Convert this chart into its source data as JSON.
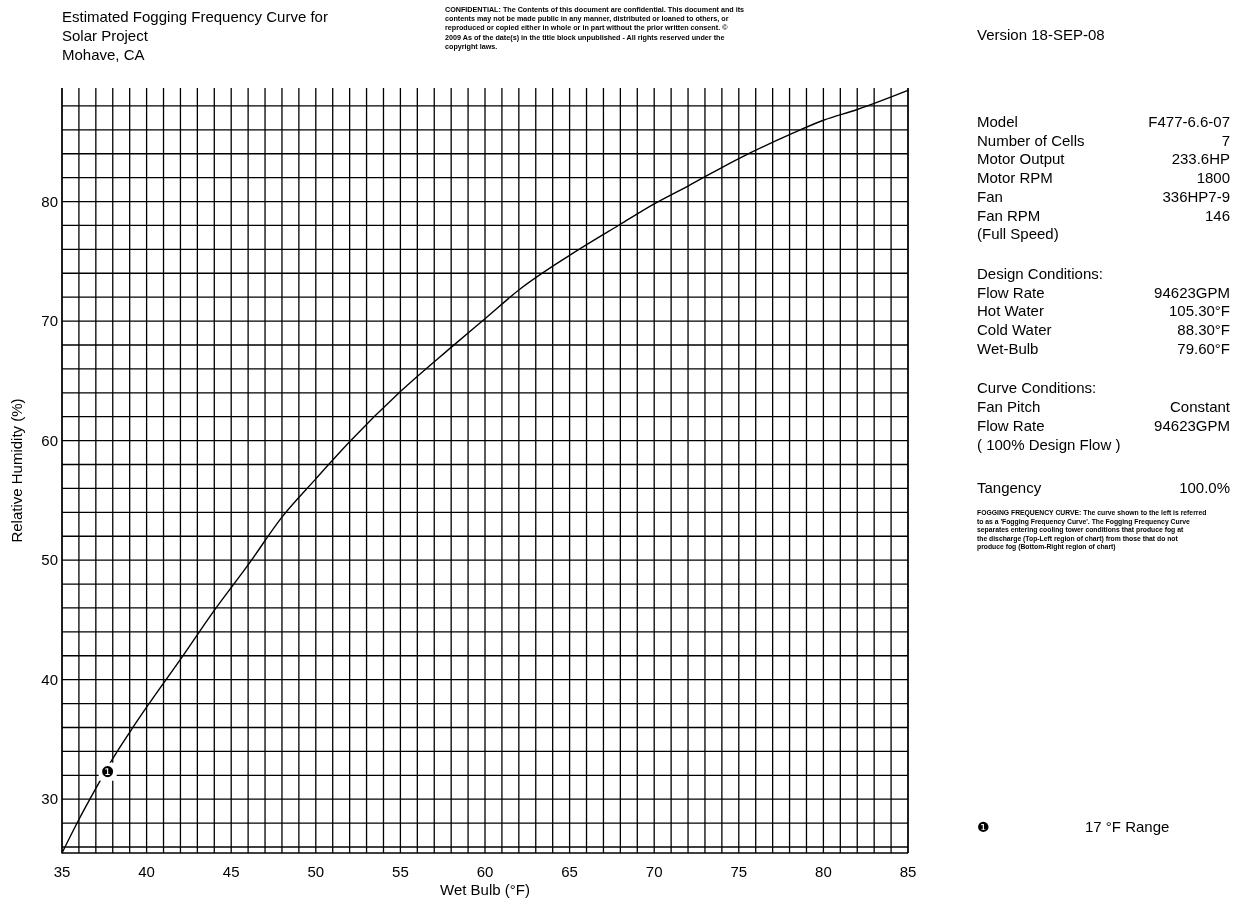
{
  "chart_data": {
    "type": "line",
    "title": "Estimated Fogging Frequency Curve for\nSolar Project\nMohave, CA",
    "xlabel": "Wet Bulb (°F)",
    "ylabel": "Relative Humidity (%)",
    "xlim": [
      35,
      85
    ],
    "ylim": [
      25.5,
      89.5
    ],
    "xticks": [
      35,
      {
        "value": 36,
        "label": null
      },
      {
        "value": 37,
        "label": null
      },
      {
        "value": 38,
        "label": null
      },
      {
        "value": 39,
        "label": null
      },
      40,
      {
        "value": 41,
        "label": null
      },
      {
        "value": 42,
        "label": null
      },
      {
        "value": 43,
        "label": null
      },
      {
        "value": 44,
        "label": null
      },
      45,
      {
        "value": 46,
        "label": null
      },
      {
        "value": 47,
        "label": null
      },
      {
        "value": 48,
        "label": null
      },
      {
        "value": 49,
        "label": null
      },
      50,
      {
        "value": 51,
        "label": null
      },
      {
        "value": 52,
        "label": null
      },
      {
        "value": 53,
        "label": null
      },
      {
        "value": 54,
        "label": null
      },
      55,
      {
        "value": 56,
        "label": null
      },
      {
        "value": 57,
        "label": null
      },
      {
        "value": 58,
        "label": null
      },
      {
        "value": 59,
        "label": null
      },
      60,
      {
        "value": 61,
        "label": null
      },
      {
        "value": 62,
        "label": null
      },
      {
        "value": 63,
        "label": null
      },
      {
        "value": 64,
        "label": null
      },
      65,
      {
        "value": 66,
        "label": null
      },
      {
        "value": 67,
        "label": null
      },
      {
        "value": 68,
        "label": null
      },
      {
        "value": 69,
        "label": null
      },
      70,
      {
        "value": 71,
        "label": null
      },
      {
        "value": 72,
        "label": null
      },
      {
        "value": 73,
        "label": null
      },
      {
        "value": 74,
        "label": null
      },
      75,
      {
        "value": 76,
        "label": null
      },
      {
        "value": 77,
        "label": null
      },
      {
        "value": 78,
        "label": null
      },
      {
        "value": 79,
        "label": null
      },
      80,
      {
        "value": 81,
        "label": null
      },
      {
        "value": 82,
        "label": null
      },
      {
        "value": 83,
        "label": null
      },
      {
        "value": 84,
        "label": null
      },
      85
    ],
    "yticks": [
      {
        "value": 26,
        "label": null
      },
      {
        "value": 28,
        "label": null
      },
      30,
      {
        "value": 32,
        "label": null
      },
      {
        "value": 34,
        "label": null
      },
      {
        "value": 36,
        "label": null
      },
      {
        "value": 38,
        "label": null
      },
      40,
      {
        "value": 42,
        "label": null
      },
      {
        "value": 44,
        "label": null
      },
      {
        "value": 46,
        "label": null
      },
      {
        "value": 48,
        "label": null
      },
      50,
      {
        "value": 52,
        "label": null
      },
      {
        "value": 54,
        "label": null
      },
      {
        "value": 56,
        "label": null
      },
      {
        "value": 58,
        "label": null
      },
      60,
      {
        "value": 62,
        "label": null
      },
      {
        "value": 64,
        "label": null
      },
      {
        "value": 66,
        "label": null
      },
      {
        "value": 68,
        "label": null
      },
      70,
      {
        "value": 72,
        "label": null
      },
      {
        "value": 74,
        "label": null
      },
      {
        "value": 76,
        "label": null
      },
      {
        "value": 78,
        "label": null
      },
      80,
      {
        "value": 82,
        "label": null
      },
      {
        "value": 84,
        "label": null
      },
      {
        "value": 86,
        "label": null
      },
      {
        "value": 88,
        "label": null
      }
    ],
    "grid": true,
    "line_style": "solid",
    "series": [
      {
        "color": "#000000",
        "x": [
          35,
          36,
          37,
          38,
          39,
          40,
          42,
          44,
          46,
          48,
          50,
          52,
          55,
          58,
          60,
          62,
          65,
          68,
          70,
          72,
          75,
          78,
          80,
          82,
          85
        ],
        "values": [
          25.5,
          28.3,
          30.9,
          33.4,
          35.6,
          37.7,
          41.7,
          45.8,
          49.6,
          53.6,
          56.8,
          59.9,
          64.1,
          67.8,
          70.2,
          72.6,
          75.5,
          78.1,
          79.8,
          81.3,
          83.6,
          85.6,
          86.8,
          87.7,
          89.3
        ]
      }
    ],
    "annotations": [
      "CONFIDENTIAL: The Contents of this document are confidential. This document and its contents may not be made public in any manner, distributed or loaned to others, or reproduced or copied either in whole or in part without the prior written consent. © 2009 As of the date(s) in the title block unpublished - All rights reserved under the copyright laws.",
      "Version 18-SEP-08",
      "Model\tF477-6.6-07",
      "Number of Cells\t7",
      "Motor Output\t233.6HP",
      "Motor RPM\t1800",
      "Fan\t336HP7-9",
      "Fan RPM\t146",
      "(Full Speed)",
      "Design Conditions:",
      "Flow Rate\t94623GPM",
      "Hot Water\t105.30°F",
      "Cold Water\t88.30°F",
      "Wet-Bulb\t79.60°F",
      "Curve Conditions:",
      "Fan Pitch\tConstant",
      "Flow Rate\t94623GPM",
      "( 100% Design Flow )",
      "Tangency\t100.0%",
      "FOGGING FREQUENCY CURVE: The curve shown to the left is referred to as a 'Fogging Frequency Curve'. The Fogging Frequency Curve separates entering cooling tower conditions that produce fog at the discharge (Top-Left region of chart) from those that do not produce fog (Bottom-Right region of chart)",
      {
        "text": "❶",
        "x": 37.7,
        "y": 32.3
      },
      "❶\t17 °F Range"
    ]
  }
}
